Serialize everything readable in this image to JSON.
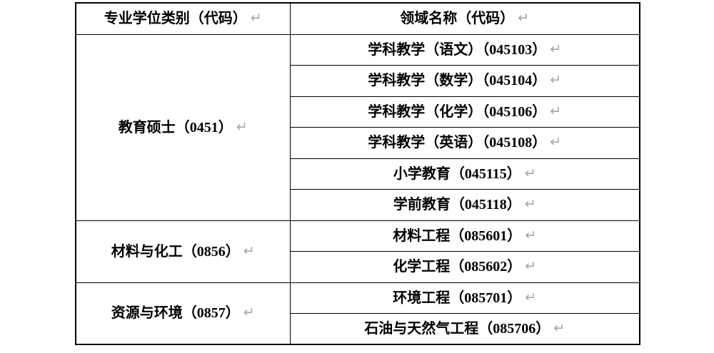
{
  "colors": {
    "border": "#000000",
    "text": "#000000",
    "mark_gray": "#a6a6a6",
    "background": "#ffffff"
  },
  "marks": {
    "cell_return": "↵"
  },
  "table": {
    "header": {
      "category": "专业学位类别（代码）",
      "field": "领域名称（代码）"
    },
    "groups": [
      {
        "category": "教育硕士（0451）",
        "fields": [
          "学科教学（语文）（045103）",
          "学科教学（数学）（045104）",
          "学科教学（化学）（045106）",
          "学科教学（英语）（045108）",
          "小学教育（045115）",
          "学前教育（045118）"
        ]
      },
      {
        "category": "材料与化工（0856）",
        "fields": [
          "材料工程（085601）",
          "化学工程（085602）"
        ]
      },
      {
        "category": "资源与环境（0857）",
        "fields": [
          "环境工程（085701）",
          "石油与天然气工程（085706）"
        ]
      }
    ]
  }
}
